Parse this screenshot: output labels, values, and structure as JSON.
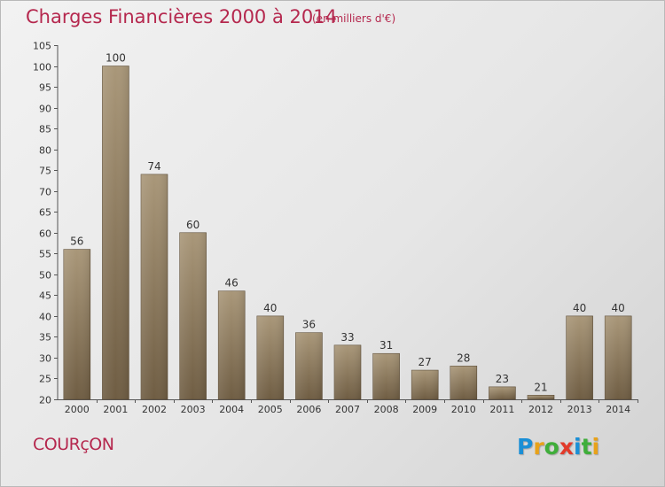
{
  "title": "Charges Financières 2000 à 2014",
  "unit_note": "(en milliers d'€)",
  "commune": "COURçON",
  "logo": {
    "text": "Proxiti",
    "letters": [
      {
        "ch": "P",
        "color": "#1a8fd6"
      },
      {
        "ch": "r",
        "color": "#e8a21a"
      },
      {
        "ch": "o",
        "color": "#3fae3a"
      },
      {
        "ch": "x",
        "color": "#e23a2a"
      },
      {
        "ch": "i",
        "color": "#1a8fd6"
      },
      {
        "ch": "t",
        "color": "#3fae3a"
      },
      {
        "ch": "i",
        "color": "#e8a21a"
      }
    ]
  },
  "colors": {
    "title": "#b5284e",
    "bar_light": "#a99779",
    "bar_dark": "#6f5d43",
    "axis": "#555555",
    "grid": "#cfcfcf"
  },
  "chart_data": {
    "type": "bar",
    "title": "Charges Financières 2000 à 2014",
    "subtitle": "(en milliers d'€)",
    "categories": [
      "2000",
      "2001",
      "2002",
      "2003",
      "2004",
      "2005",
      "2006",
      "2007",
      "2008",
      "2009",
      "2010",
      "2011",
      "2012",
      "2013",
      "2014"
    ],
    "values": [
      56,
      100,
      74,
      60,
      46,
      40,
      36,
      33,
      31,
      27,
      28,
      23,
      21,
      40,
      40
    ],
    "ylim": [
      20,
      105
    ],
    "yticks": [
      20,
      25,
      30,
      35,
      40,
      45,
      50,
      55,
      60,
      65,
      70,
      75,
      80,
      85,
      90,
      95,
      100,
      105
    ],
    "xlabel": "",
    "ylabel": "",
    "grid": false,
    "data_labels": true
  }
}
